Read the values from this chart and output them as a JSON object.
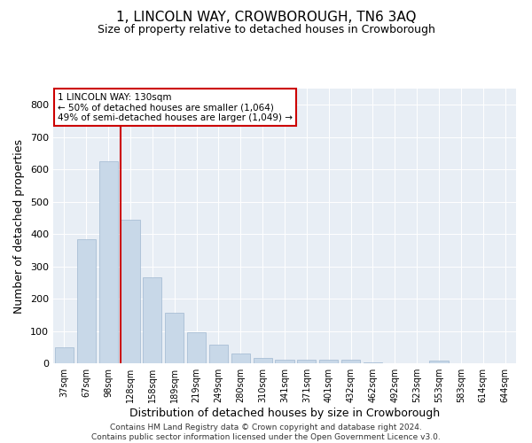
{
  "title": "1, LINCOLN WAY, CROWBOROUGH, TN6 3AQ",
  "subtitle": "Size of property relative to detached houses in Crowborough",
  "xlabel": "Distribution of detached houses by size in Crowborough",
  "ylabel": "Number of detached properties",
  "categories": [
    "37sqm",
    "67sqm",
    "98sqm",
    "128sqm",
    "158sqm",
    "189sqm",
    "219sqm",
    "249sqm",
    "280sqm",
    "310sqm",
    "341sqm",
    "371sqm",
    "401sqm",
    "432sqm",
    "462sqm",
    "492sqm",
    "523sqm",
    "553sqm",
    "583sqm",
    "614sqm",
    "644sqm"
  ],
  "values": [
    50,
    383,
    625,
    443,
    265,
    155,
    97,
    57,
    30,
    17,
    12,
    12,
    12,
    10,
    4,
    0,
    0,
    8,
    0,
    0,
    0
  ],
  "bar_color": "#c8d8e8",
  "bar_edge_color": "#a0b8d0",
  "vline_color": "#cc0000",
  "vline_x_index": 3,
  "annotation_text": "1 LINCOLN WAY: 130sqm\n← 50% of detached houses are smaller (1,064)\n49% of semi-detached houses are larger (1,049) →",
  "annotation_box_color": "#ffffff",
  "annotation_box_edge": "#cc0000",
  "ylim": [
    0,
    850
  ],
  "yticks": [
    0,
    100,
    200,
    300,
    400,
    500,
    600,
    700,
    800
  ],
  "bg_color": "#e8eef5",
  "footer": "Contains HM Land Registry data © Crown copyright and database right 2024.\nContains public sector information licensed under the Open Government Licence v3.0.",
  "title_fontsize": 11,
  "subtitle_fontsize": 9,
  "label_fontsize": 9,
  "tick_fontsize": 7,
  "annot_fontsize": 7.5,
  "footer_fontsize": 6.5
}
